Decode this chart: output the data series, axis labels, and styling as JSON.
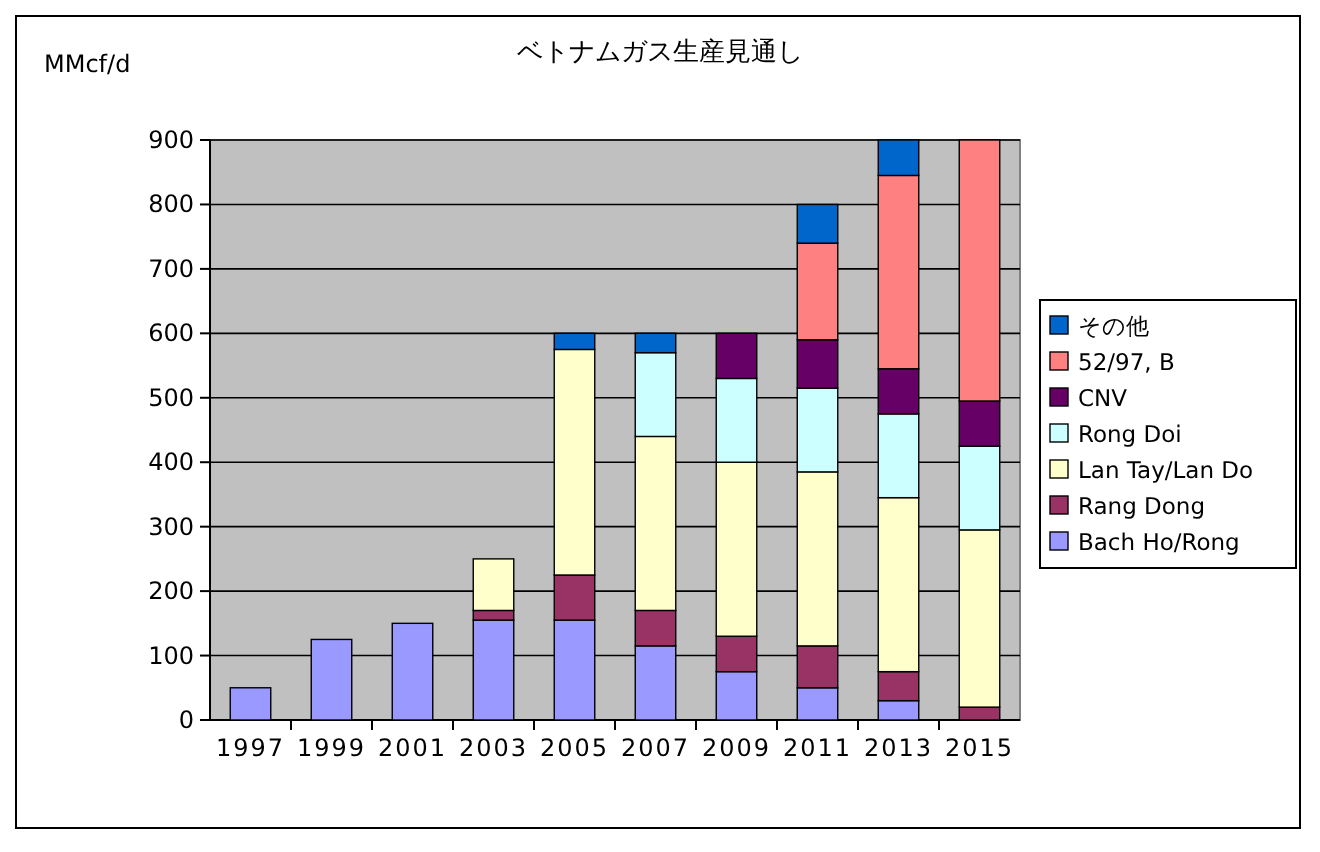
{
  "chart_data": {
    "type": "bar",
    "title": "ベトナムガス生産見通し",
    "ylabel": "MMcf/d",
    "stacked": true,
    "grid": "y",
    "legend": "right",
    "categories": [
      "1997",
      "1999",
      "2001",
      "2003",
      "2005",
      "2007",
      "2009",
      "2011",
      "2013",
      "2015"
    ],
    "ylim": [
      0,
      900
    ],
    "yticks": [
      0,
      100,
      200,
      300,
      400,
      500,
      600,
      700,
      800,
      900
    ],
    "series": [
      {
        "name": "Bach Ho/Rong",
        "color": "#9999ff",
        "values": [
          50,
          125,
          150,
          155,
          155,
          115,
          75,
          50,
          30,
          0
        ]
      },
      {
        "name": "Rang Dong",
        "color": "#993366",
        "values": [
          0,
          0,
          0,
          15,
          70,
          55,
          55,
          65,
          45,
          20
        ]
      },
      {
        "name": "Lan Tay/Lan Do",
        "color": "#ffffcc",
        "values": [
          0,
          0,
          0,
          80,
          350,
          270,
          270,
          270,
          270,
          275
        ]
      },
      {
        "name": "Rong Doi",
        "color": "#ccffff",
        "values": [
          0,
          0,
          0,
          0,
          0,
          130,
          130,
          130,
          130,
          130
        ]
      },
      {
        "name": "CNV",
        "color": "#660066",
        "values": [
          0,
          0,
          0,
          0,
          0,
          0,
          70,
          75,
          70,
          70
        ]
      },
      {
        "name": "52/97, B",
        "color": "#ff8080",
        "values": [
          0,
          0,
          0,
          0,
          0,
          0,
          0,
          150,
          300,
          405
        ]
      },
      {
        "name": "その他",
        "color": "#0066cc",
        "values": [
          0,
          0,
          0,
          0,
          25,
          30,
          0,
          60,
          55,
          0
        ]
      }
    ]
  }
}
